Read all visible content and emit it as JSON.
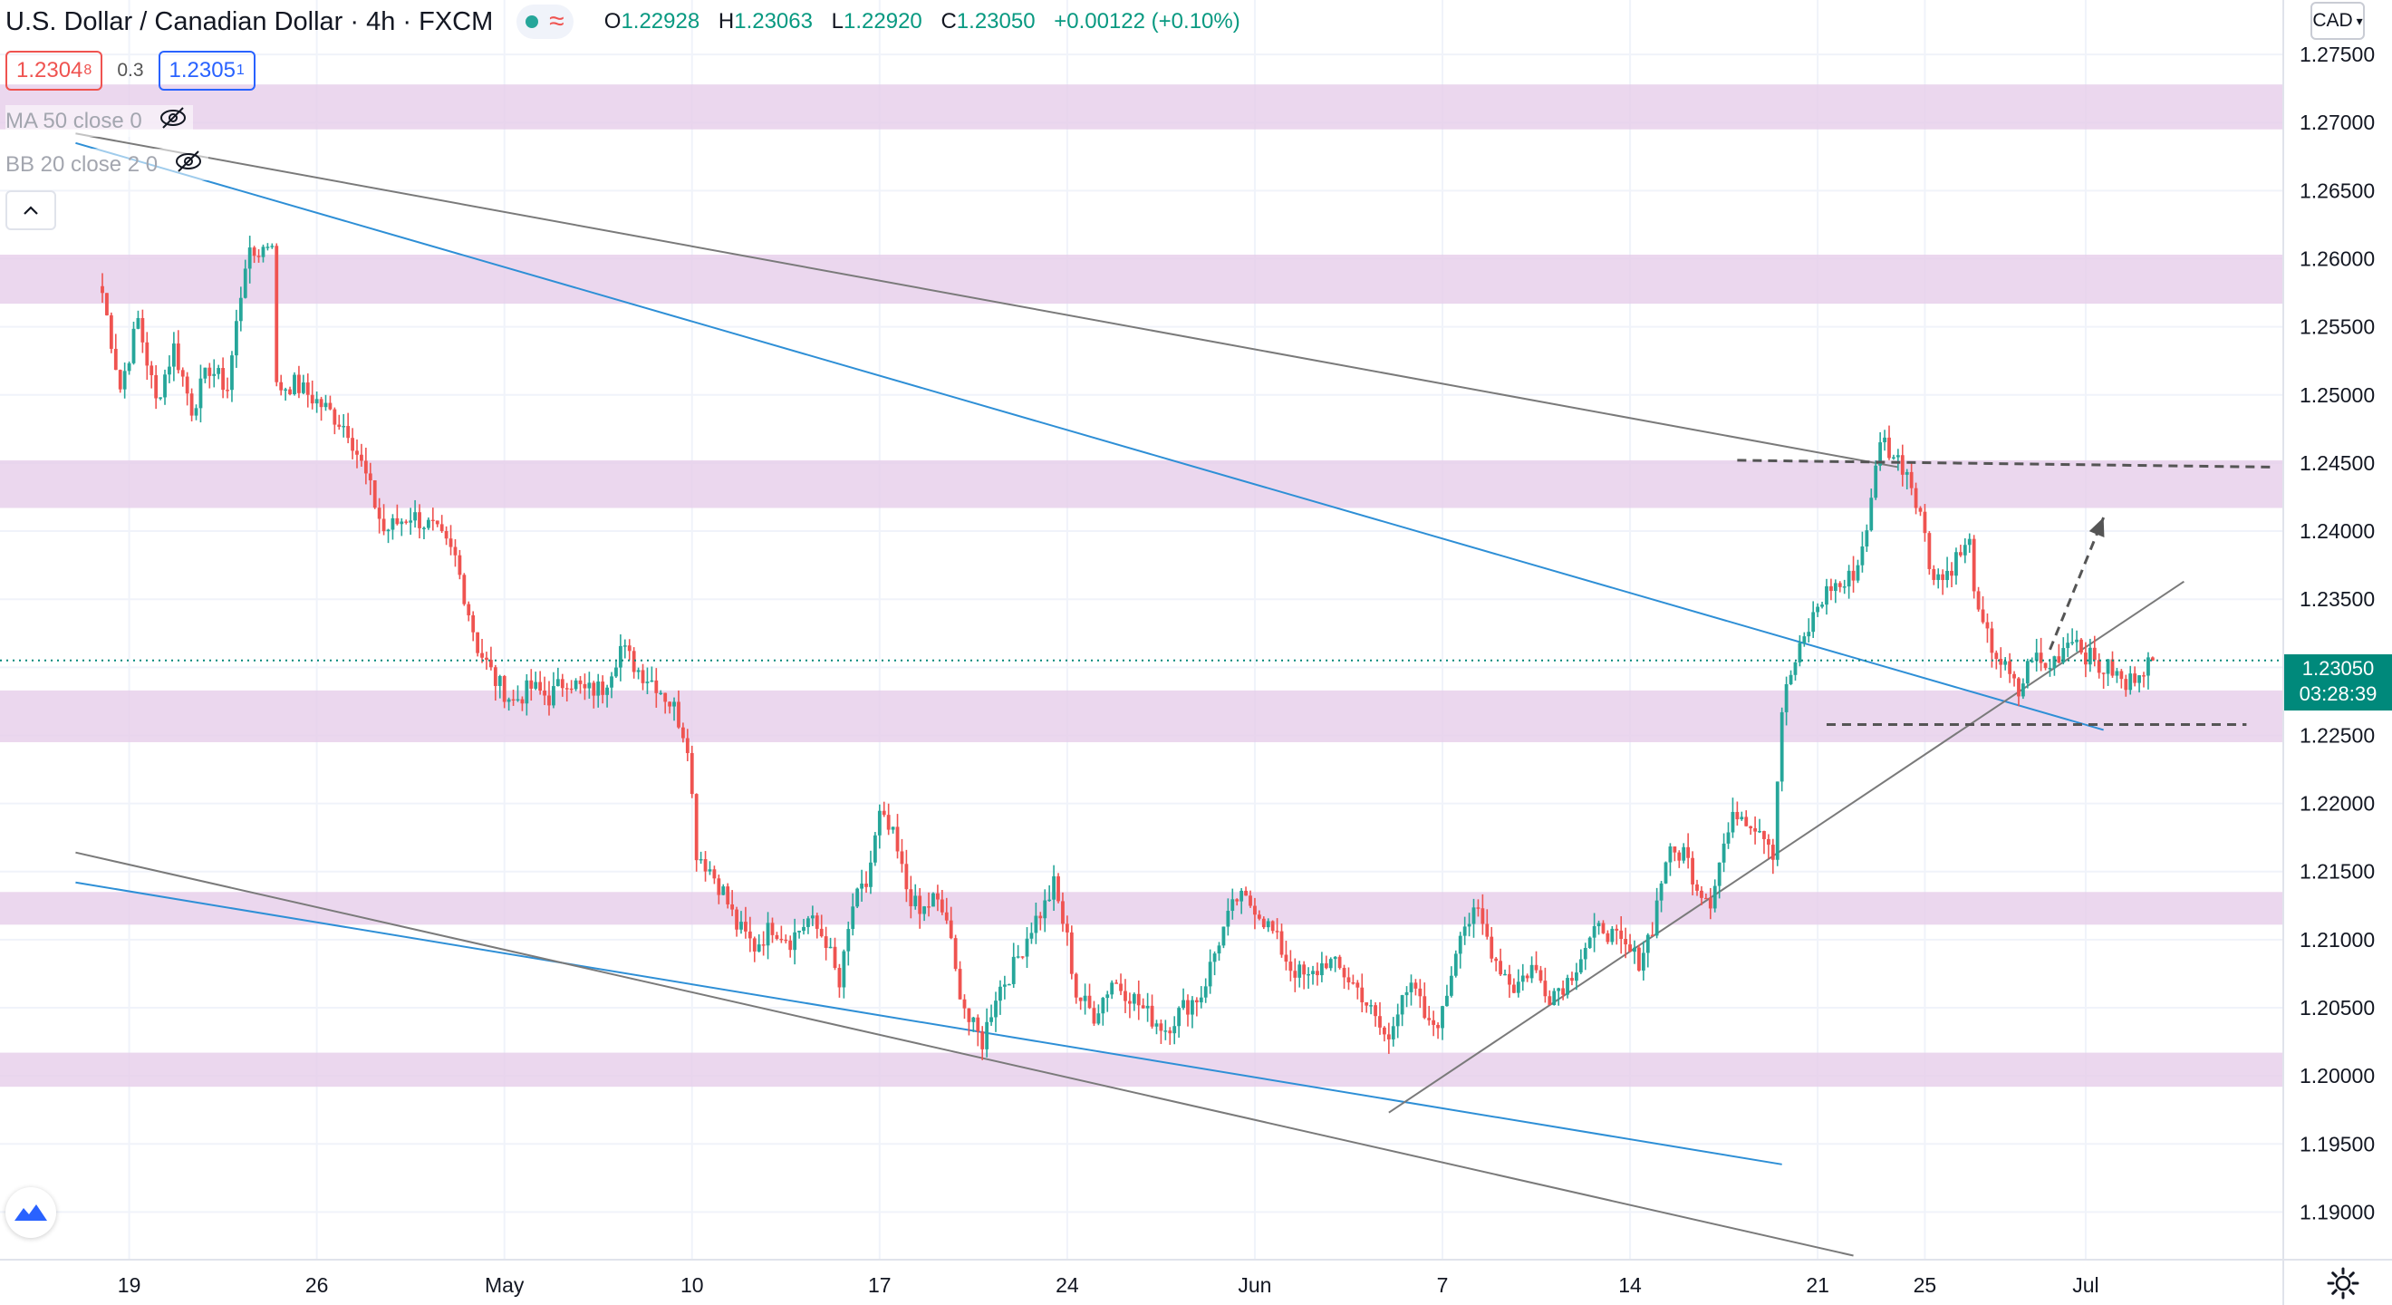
{
  "header": {
    "title": "U.S. Dollar / Canadian Dollar · 4h · FXCM",
    "ohlc": [
      {
        "k": "O",
        "v": "1.22928"
      },
      {
        "k": "H",
        "v": "1.23063"
      },
      {
        "k": "L",
        "v": "1.22920"
      },
      {
        "k": "C",
        "v": "1.23050"
      }
    ],
    "change": "+0.00122 (+0.10%)"
  },
  "quote": {
    "bid_main": "1.2304",
    "bid_sup": "8",
    "spread": "0.3",
    "ask_main": "1.2305",
    "ask_sup": "1"
  },
  "indicators": [
    {
      "label": "MA 50 close 0"
    },
    {
      "label": "BB 20 close 2 0"
    }
  ],
  "axis_currency": "CAD",
  "last_price": {
    "value": "1.23050",
    "countdown": "03:28:39"
  },
  "colors": {
    "up": "#26a69a",
    "down": "#ef5350",
    "zone": "#e6cdea",
    "blue_line": "#2e8fd6",
    "grey_line": "#7a7a7a",
    "last": "#00897b"
  },
  "icons": {
    "live": "live-dot-icon",
    "realtime": "wave-icon",
    "hidden": "eye-off-icon",
    "collapse": "chevron-up-icon",
    "logo": "tradingview-logo-icon",
    "settings": "gear-icon"
  },
  "chart_data": {
    "type": "candlestick",
    "symbol": "USDCAD",
    "timeframe": "4h",
    "ylim": [
      1.1865,
      1.279
    ],
    "y_ticks": [
      "1.27500",
      "1.27000",
      "1.26500",
      "1.26000",
      "1.25500",
      "1.25000",
      "1.24500",
      "1.24000",
      "1.23500",
      "1.23000",
      "1.22500",
      "1.22000",
      "1.21500",
      "1.21000",
      "1.20500",
      "1.20000",
      "1.19500",
      "1.19000"
    ],
    "x_ticks": [
      {
        "label": "19",
        "i": 6
      },
      {
        "label": "26",
        "i": 48
      },
      {
        "label": "May",
        "i": 90
      },
      {
        "label": "10",
        "i": 132
      },
      {
        "label": "17",
        "i": 174
      },
      {
        "label": "24",
        "i": 216
      },
      {
        "label": "Jun",
        "i": 258
      },
      {
        "label": "7",
        "i": 300
      },
      {
        "label": "14",
        "i": 342
      },
      {
        "label": "21",
        "i": 384
      },
      {
        "label": "25",
        "i": 408
      },
      {
        "label": "Jul",
        "i": 444
      }
    ],
    "zones": [
      [
        1.2695,
        1.2728
      ],
      [
        1.2567,
        1.2603
      ],
      [
        1.2417,
        1.2452
      ],
      [
        1.2245,
        1.2283
      ],
      [
        1.2111,
        1.2135
      ],
      [
        1.1992,
        1.2017
      ]
    ],
    "lines": [
      {
        "i1": -6,
        "p1": 1.2685,
        "i2": 448,
        "p2": 1.2254,
        "color": "blue"
      },
      {
        "i1": -6,
        "p1": 1.2692,
        "i2": 402,
        "p2": 1.2447,
        "color": "grey"
      },
      {
        "i1": -6,
        "p1": 1.2142,
        "i2": 376,
        "p2": 1.1935,
        "color": "blue"
      },
      {
        "i1": -6,
        "p1": 1.2164,
        "i2": 392,
        "p2": 1.1868,
        "color": "grey"
      },
      {
        "i1": 288,
        "p1": 1.1973,
        "i2": 466,
        "p2": 1.2363,
        "color": "grey"
      }
    ],
    "dashed": [
      {
        "i1": 366,
        "i2": 486,
        "p1": 1.2452,
        "p2": 1.2447
      },
      {
        "i1": 386,
        "i2": 480,
        "p1": 1.2258,
        "p2": 1.2258
      }
    ],
    "arrow": {
      "i1": 436,
      "p1": 1.2313,
      "i2": 448,
      "p2": 1.241
    },
    "waypoints": [
      [
        0,
        1.2575
      ],
      [
        4,
        1.2505
      ],
      [
        8,
        1.2555
      ],
      [
        12,
        1.2495
      ],
      [
        16,
        1.2535
      ],
      [
        20,
        1.249
      ],
      [
        24,
        1.252
      ],
      [
        28,
        1.2505
      ],
      [
        32,
        1.2598
      ],
      [
        36,
        1.2608
      ],
      [
        38,
        1.2615
      ],
      [
        39,
        1.2505
      ],
      [
        43,
        1.2508
      ],
      [
        47,
        1.2498
      ],
      [
        50,
        1.249
      ],
      [
        55,
        1.2475
      ],
      [
        59,
        1.244
      ],
      [
        63,
        1.24
      ],
      [
        69,
        1.2412
      ],
      [
        74,
        1.2402
      ],
      [
        79,
        1.238
      ],
      [
        84,
        1.2315
      ],
      [
        88,
        1.229
      ],
      [
        92,
        1.2275
      ],
      [
        96,
        1.2285
      ],
      [
        100,
        1.2278
      ],
      [
        104,
        1.2292
      ],
      [
        108,
        1.2282
      ],
      [
        112,
        1.2285
      ],
      [
        116,
        1.2315
      ],
      [
        120,
        1.2298
      ],
      [
        124,
        1.2288
      ],
      [
        128,
        1.227
      ],
      [
        131,
        1.2245
      ],
      [
        133,
        1.2165
      ],
      [
        136,
        1.2152
      ],
      [
        139,
        1.2135
      ],
      [
        142,
        1.211
      ],
      [
        146,
        1.2095
      ],
      [
        150,
        1.211
      ],
      [
        154,
        1.21
      ],
      [
        158,
        1.2115
      ],
      [
        162,
        1.21
      ],
      [
        165,
        1.2065
      ],
      [
        168,
        1.2125
      ],
      [
        171,
        1.214
      ],
      [
        174,
        1.219
      ],
      [
        177,
        1.2175
      ],
      [
        180,
        1.2138
      ],
      [
        183,
        1.2118
      ],
      [
        186,
        1.213
      ],
      [
        189,
        1.2115
      ],
      [
        191,
        1.2075
      ],
      [
        194,
        1.204
      ],
      [
        197,
        1.2025
      ],
      [
        200,
        1.206
      ],
      [
        204,
        1.208
      ],
      [
        208,
        1.211
      ],
      [
        211,
        1.2125
      ],
      [
        213,
        1.214
      ],
      [
        216,
        1.21
      ],
      [
        218,
        1.206
      ],
      [
        222,
        1.2045
      ],
      [
        226,
        1.207
      ],
      [
        230,
        1.206
      ],
      [
        234,
        1.2045
      ],
      [
        238,
        1.2035
      ],
      [
        242,
        1.205
      ],
      [
        246,
        1.206
      ],
      [
        250,
        1.21
      ],
      [
        254,
        1.213
      ],
      [
        258,
        1.2125
      ],
      [
        262,
        1.2105
      ],
      [
        266,
        1.208
      ],
      [
        270,
        1.207
      ],
      [
        274,
        1.2085
      ],
      [
        278,
        1.2075
      ],
      [
        282,
        1.206
      ],
      [
        285,
        1.204
      ],
      [
        288,
        1.2025
      ],
      [
        291,
        1.2065
      ],
      [
        294,
        1.206
      ],
      [
        297,
        1.2035
      ],
      [
        300,
        1.2045
      ],
      [
        304,
        1.211
      ],
      [
        308,
        1.2118
      ],
      [
        312,
        1.2085
      ],
      [
        316,
        1.2065
      ],
      [
        320,
        1.208
      ],
      [
        324,
        1.206
      ],
      [
        328,
        1.207
      ],
      [
        332,
        1.2095
      ],
      [
        336,
        1.211
      ],
      [
        340,
        1.2095
      ],
      [
        344,
        1.2085
      ],
      [
        347,
        1.211
      ],
      [
        350,
        1.216
      ],
      [
        354,
        1.2165
      ],
      [
        357,
        1.214
      ],
      [
        360,
        1.213
      ],
      [
        363,
        1.217
      ],
      [
        366,
        1.2195
      ],
      [
        370,
        1.2185
      ],
      [
        372,
        1.218
      ],
      [
        374,
        1.2165
      ],
      [
        376,
        1.227
      ],
      [
        378,
        1.2295
      ],
      [
        381,
        1.232
      ],
      [
        384,
        1.2345
      ],
      [
        387,
        1.236
      ],
      [
        390,
        1.236
      ],
      [
        393,
        1.2375
      ],
      [
        396,
        1.242
      ],
      [
        398,
        1.247
      ],
      [
        401,
        1.2455
      ],
      [
        404,
        1.2445
      ],
      [
        407,
        1.2415
      ],
      [
        409,
        1.2375
      ],
      [
        412,
        1.2365
      ],
      [
        415,
        1.238
      ],
      [
        418,
        1.239
      ],
      [
        420,
        1.2335
      ],
      [
        423,
        1.2315
      ],
      [
        426,
        1.2298
      ],
      [
        429,
        1.228
      ],
      [
        432,
        1.231
      ],
      [
        435,
        1.2298
      ],
      [
        438,
        1.231
      ],
      [
        441,
        1.2325
      ],
      [
        444,
        1.231
      ],
      [
        447,
        1.23
      ],
      [
        450,
        1.2298
      ],
      [
        453,
        1.2285
      ],
      [
        456,
        1.23
      ],
      [
        459,
        1.2305
      ]
    ],
    "last_value": 1.2305
  }
}
